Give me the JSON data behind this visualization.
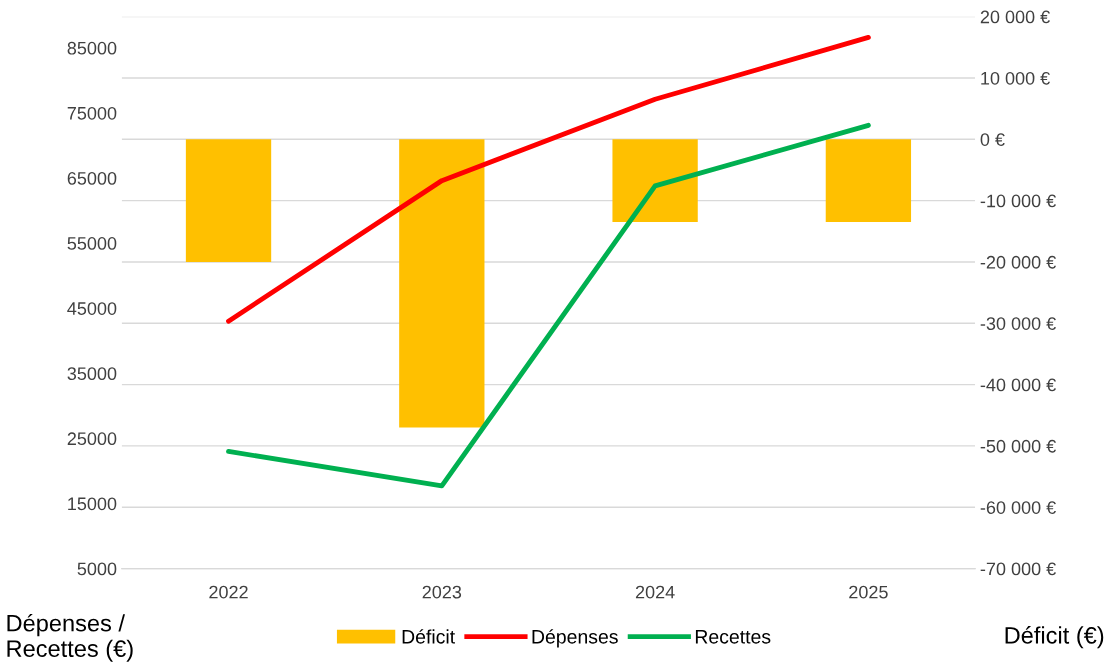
{
  "chart_data": {
    "type": "bar",
    "ylabel": "Dépenses /\nRecettes (€)",
    "y2label": "Déficit (€)",
    "categories": [
      "2022",
      "2023",
      "2024",
      "2025"
    ],
    "series": [
      {
        "name": "Déficit",
        "axis": "y2",
        "color": "#ffc000",
        "values": [
          -20000,
          -47000,
          -13500,
          -13500
        ]
      },
      {
        "name": "Dépenses",
        "type": "line",
        "color": "#ff0000",
        "values": [
          43000,
          64600,
          77100,
          86600
        ]
      },
      {
        "name": "Recettes",
        "type": "line",
        "color": "#00b050",
        "values": [
          23000,
          17700,
          63800,
          73100
        ]
      }
    ],
    "ylim": [
      5000,
      89800
    ],
    "yticks": [
      5000,
      15000,
      25000,
      35000,
      45000,
      55000,
      65000,
      75000,
      85000
    ],
    "y2lim": [
      -70000,
      20000
    ],
    "y2ticks": [
      {
        "value": -70000,
        "label": "-70 000 €"
      },
      {
        "value": -60000,
        "label": "-60 000 €"
      },
      {
        "value": -50000,
        "label": "-50 000 €"
      },
      {
        "value": -40000,
        "label": "-40 000 €"
      },
      {
        "value": -30000,
        "label": "-30 000 €"
      },
      {
        "value": -20000,
        "label": "-20 000 €"
      },
      {
        "value": -10000,
        "label": "-10 000 €"
      },
      {
        "value": 0,
        "label": "0 €"
      },
      {
        "value": 10000,
        "label": "10 000 €"
      },
      {
        "value": 20000,
        "label": "20 000 €"
      }
    ],
    "grid": "y",
    "legend": "bottom",
    "marker": "none",
    "line_style": "solid"
  }
}
